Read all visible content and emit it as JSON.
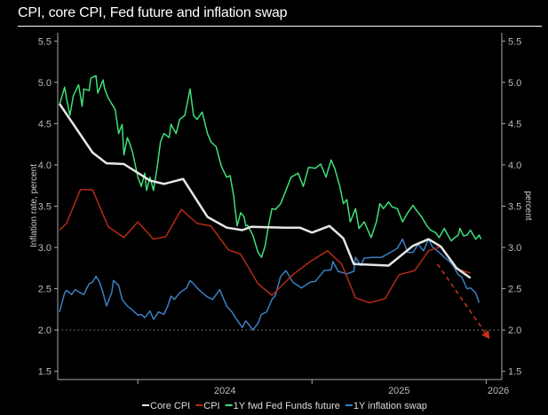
{
  "chart_data": {
    "type": "line",
    "title": "CPI, core CPI, Fed future and inflation swap",
    "ylabel_left": "Inflation rate, percent",
    "ylabel_right": "percent",
    "xlabel": "",
    "xlim": [
      2023.54,
      2026.09
    ],
    "ylim": [
      1.4,
      5.6
    ],
    "yticks": [
      "1.5",
      "2.0",
      "2.5",
      "3.0",
      "3.5",
      "4.0",
      "4.5",
      "5.0",
      "5.5"
    ],
    "xtick_positions": [
      2024.0,
      2025.0,
      2026.0
    ],
    "xtick_labels": [
      {
        "label": "2024",
        "at": 2024.5
      },
      {
        "label": "2025",
        "at": 2025.5
      },
      {
        "label": "2026",
        "at": 2026.07
      }
    ],
    "reference_line": {
      "y": 2.0,
      "style": "dotted"
    },
    "annotation_arrow": {
      "from": [
        2025.72,
        2.8
      ],
      "to": [
        2026.02,
        1.89
      ],
      "color": "#c0301c",
      "style": "dashed"
    },
    "legend_position": "bottom",
    "series": [
      {
        "name": "Core CPI",
        "color": "#e6e6e6",
        "points": [
          [
            2023.55,
            4.74
          ],
          [
            2023.74,
            4.15
          ],
          [
            2023.82,
            4.02
          ],
          [
            2023.92,
            4.01
          ],
          [
            2024.07,
            3.81
          ],
          [
            2024.15,
            3.77
          ],
          [
            2024.26,
            3.83
          ],
          [
            2024.4,
            3.37
          ],
          [
            2024.51,
            3.24
          ],
          [
            2024.6,
            3.21
          ],
          [
            2024.65,
            3.25
          ],
          [
            2024.84,
            3.24
          ],
          [
            2024.93,
            3.24
          ],
          [
            2025.0,
            3.18
          ],
          [
            2025.1,
            3.26
          ],
          [
            2025.18,
            3.11
          ],
          [
            2025.24,
            2.8
          ],
          [
            2025.44,
            2.78
          ],
          [
            2025.58,
            3.02
          ],
          [
            2025.67,
            3.1
          ],
          [
            2025.74,
            3.01
          ],
          [
            2025.83,
            2.75
          ],
          [
            2025.91,
            2.63
          ]
        ]
      },
      {
        "name": "CPI",
        "color": "#b52a16",
        "points": [
          [
            2023.55,
            3.21
          ],
          [
            2023.59,
            3.29
          ],
          [
            2023.67,
            3.7
          ],
          [
            2023.74,
            3.7
          ],
          [
            2023.83,
            3.25
          ],
          [
            2023.92,
            3.12
          ],
          [
            2024.0,
            3.31
          ],
          [
            2024.09,
            3.1
          ],
          [
            2024.16,
            3.13
          ],
          [
            2024.25,
            3.46
          ],
          [
            2024.34,
            3.29
          ],
          [
            2024.42,
            3.26
          ],
          [
            2024.52,
            2.97
          ],
          [
            2024.59,
            2.92
          ],
          [
            2024.69,
            2.56
          ],
          [
            2024.77,
            2.42
          ],
          [
            2024.89,
            2.67
          ],
          [
            2024.99,
            2.83
          ],
          [
            2025.09,
            2.96
          ],
          [
            2025.17,
            2.8
          ],
          [
            2025.25,
            2.39
          ],
          [
            2025.33,
            2.33
          ],
          [
            2025.42,
            2.38
          ],
          [
            2025.5,
            2.67
          ],
          [
            2025.59,
            2.72
          ],
          [
            2025.67,
            2.96
          ],
          [
            2025.74,
            3.01
          ],
          [
            2025.83,
            2.74
          ],
          [
            2025.91,
            2.69
          ]
        ]
      },
      {
        "name": "1Y fwd Fed Funds future",
        "color": "#3ee07a",
        "points": [
          [
            2023.55,
            4.73
          ],
          [
            2023.58,
            4.94
          ],
          [
            2023.59,
            4.81
          ],
          [
            2023.61,
            4.6
          ],
          [
            2023.63,
            4.84
          ],
          [
            2023.66,
            4.97
          ],
          [
            2023.68,
            4.71
          ],
          [
            2023.69,
            4.92
          ],
          [
            2023.72,
            4.9
          ],
          [
            2023.73,
            5.05
          ],
          [
            2023.76,
            5.08
          ],
          [
            2023.77,
            4.87
          ],
          [
            2023.8,
            5.03
          ],
          [
            2023.81,
            4.92
          ],
          [
            2023.83,
            4.81
          ],
          [
            2023.85,
            4.74
          ],
          [
            2023.87,
            4.67
          ],
          [
            2023.89,
            4.38
          ],
          [
            2023.91,
            4.49
          ],
          [
            2023.92,
            4.12
          ],
          [
            2023.94,
            4.33
          ],
          [
            2023.95,
            4.28
          ],
          [
            2023.97,
            4.15
          ],
          [
            2024.0,
            3.85
          ],
          [
            2024.02,
            3.74
          ],
          [
            2024.04,
            3.9
          ],
          [
            2024.05,
            3.69
          ],
          [
            2024.07,
            3.85
          ],
          [
            2024.09,
            3.69
          ],
          [
            2024.11,
            3.96
          ],
          [
            2024.13,
            4.28
          ],
          [
            2024.15,
            4.38
          ],
          [
            2024.18,
            4.33
          ],
          [
            2024.19,
            4.49
          ],
          [
            2024.22,
            4.38
          ],
          [
            2024.24,
            4.55
          ],
          [
            2024.27,
            4.6
          ],
          [
            2024.3,
            4.92
          ],
          [
            2024.32,
            4.6
          ],
          [
            2024.34,
            4.55
          ],
          [
            2024.37,
            4.64
          ],
          [
            2024.4,
            4.38
          ],
          [
            2024.42,
            4.28
          ],
          [
            2024.45,
            4.22
          ],
          [
            2024.48,
            3.98
          ],
          [
            2024.51,
            3.85
          ],
          [
            2024.53,
            3.87
          ],
          [
            2024.55,
            3.63
          ],
          [
            2024.57,
            3.26
          ],
          [
            2024.59,
            3.42
          ],
          [
            2024.61,
            3.37
          ],
          [
            2024.62,
            3.26
          ],
          [
            2024.63,
            3.27
          ],
          [
            2024.66,
            3.15
          ],
          [
            2024.69,
            2.94
          ],
          [
            2024.71,
            2.88
          ],
          [
            2024.73,
            3.01
          ],
          [
            2024.75,
            3.26
          ],
          [
            2024.77,
            3.47
          ],
          [
            2024.79,
            3.46
          ],
          [
            2024.82,
            3.53
          ],
          [
            2024.85,
            3.69
          ],
          [
            2024.88,
            3.85
          ],
          [
            2024.92,
            3.9
          ],
          [
            2024.95,
            3.74
          ],
          [
            2024.98,
            3.97
          ],
          [
            2025.02,
            3.96
          ],
          [
            2025.05,
            4.01
          ],
          [
            2025.08,
            3.85
          ],
          [
            2025.11,
            4.06
          ],
          [
            2025.13,
            3.96
          ],
          [
            2025.16,
            3.74
          ],
          [
            2025.18,
            3.53
          ],
          [
            2025.2,
            3.58
          ],
          [
            2025.22,
            3.31
          ],
          [
            2025.25,
            3.47
          ],
          [
            2025.27,
            3.23
          ],
          [
            2025.3,
            3.31
          ],
          [
            2025.34,
            3.12
          ],
          [
            2025.37,
            3.31
          ],
          [
            2025.39,
            3.53
          ],
          [
            2025.41,
            3.47
          ],
          [
            2025.44,
            3.55
          ],
          [
            2025.46,
            3.49
          ],
          [
            2025.49,
            3.47
          ],
          [
            2025.52,
            3.31
          ],
          [
            2025.55,
            3.42
          ],
          [
            2025.58,
            3.51
          ],
          [
            2025.61,
            3.42
          ],
          [
            2025.63,
            3.37
          ],
          [
            2025.66,
            3.26
          ],
          [
            2025.68,
            3.21
          ],
          [
            2025.71,
            3.18
          ],
          [
            2025.73,
            3.12
          ],
          [
            2025.76,
            3.23
          ],
          [
            2025.78,
            3.15
          ],
          [
            2025.8,
            3.08
          ],
          [
            2025.82,
            3.12
          ],
          [
            2025.84,
            3.15
          ],
          [
            2025.85,
            3.23
          ],
          [
            2025.87,
            3.14
          ],
          [
            2025.89,
            3.15
          ],
          [
            2025.91,
            3.21
          ],
          [
            2025.94,
            3.1
          ],
          [
            2025.96,
            3.15
          ],
          [
            2025.97,
            3.1
          ]
        ]
      },
      {
        "name": "1Y inflation swap",
        "color": "#3b7fc4",
        "points": [
          [
            2023.55,
            2.22
          ],
          [
            2023.58,
            2.45
          ],
          [
            2023.59,
            2.48
          ],
          [
            2023.62,
            2.43
          ],
          [
            2023.64,
            2.49
          ],
          [
            2023.67,
            2.45
          ],
          [
            2023.69,
            2.43
          ],
          [
            2023.72,
            2.56
          ],
          [
            2023.74,
            2.58
          ],
          [
            2023.76,
            2.65
          ],
          [
            2023.78,
            2.58
          ],
          [
            2023.8,
            2.45
          ],
          [
            2023.82,
            2.29
          ],
          [
            2023.85,
            2.45
          ],
          [
            2023.86,
            2.6
          ],
          [
            2023.89,
            2.54
          ],
          [
            2023.91,
            2.37
          ],
          [
            2023.94,
            2.29
          ],
          [
            2023.97,
            2.24
          ],
          [
            2024.0,
            2.18
          ],
          [
            2024.02,
            2.19
          ],
          [
            2024.04,
            2.15
          ],
          [
            2024.07,
            2.23
          ],
          [
            2024.09,
            2.13
          ],
          [
            2024.12,
            2.22
          ],
          [
            2024.15,
            2.19
          ],
          [
            2024.17,
            2.28
          ],
          [
            2024.19,
            2.41
          ],
          [
            2024.21,
            2.37
          ],
          [
            2024.24,
            2.45
          ],
          [
            2024.28,
            2.51
          ],
          [
            2024.3,
            2.6
          ],
          [
            2024.32,
            2.56
          ],
          [
            2024.34,
            2.51
          ],
          [
            2024.37,
            2.45
          ],
          [
            2024.4,
            2.4
          ],
          [
            2024.43,
            2.37
          ],
          [
            2024.47,
            2.49
          ],
          [
            2024.51,
            2.29
          ],
          [
            2024.54,
            2.22
          ],
          [
            2024.56,
            2.15
          ],
          [
            2024.6,
            2.03
          ],
          [
            2024.62,
            2.11
          ],
          [
            2024.64,
            2.06
          ],
          [
            2024.66,
            2.0
          ],
          [
            2024.69,
            2.08
          ],
          [
            2024.71,
            2.19
          ],
          [
            2024.74,
            2.22
          ],
          [
            2024.77,
            2.37
          ],
          [
            2024.79,
            2.42
          ],
          [
            2024.82,
            2.65
          ],
          [
            2024.85,
            2.72
          ],
          [
            2024.89,
            2.58
          ],
          [
            2024.94,
            2.51
          ],
          [
            2024.99,
            2.58
          ],
          [
            2025.02,
            2.59
          ],
          [
            2025.07,
            2.72
          ],
          [
            2025.11,
            2.73
          ],
          [
            2025.12,
            2.83
          ],
          [
            2025.15,
            2.71
          ],
          [
            2025.2,
            2.68
          ],
          [
            2025.24,
            2.71
          ],
          [
            2025.25,
            2.88
          ],
          [
            2025.28,
            2.78
          ],
          [
            2025.3,
            2.87
          ],
          [
            2025.35,
            2.88
          ],
          [
            2025.4,
            2.88
          ],
          [
            2025.45,
            2.94
          ],
          [
            2025.49,
            2.99
          ],
          [
            2025.52,
            3.1
          ],
          [
            2025.55,
            2.94
          ],
          [
            2025.58,
            2.94
          ],
          [
            2025.61,
            3.04
          ],
          [
            2025.64,
            2.96
          ],
          [
            2025.67,
            3.1
          ],
          [
            2025.69,
            3.01
          ],
          [
            2025.73,
            2.94
          ],
          [
            2025.76,
            2.88
          ],
          [
            2025.79,
            2.83
          ],
          [
            2025.81,
            2.78
          ],
          [
            2025.84,
            2.67
          ],
          [
            2025.86,
            2.64
          ],
          [
            2025.89,
            2.5
          ],
          [
            2025.91,
            2.51
          ],
          [
            2025.94,
            2.45
          ],
          [
            2025.96,
            2.33
          ]
        ]
      }
    ]
  }
}
